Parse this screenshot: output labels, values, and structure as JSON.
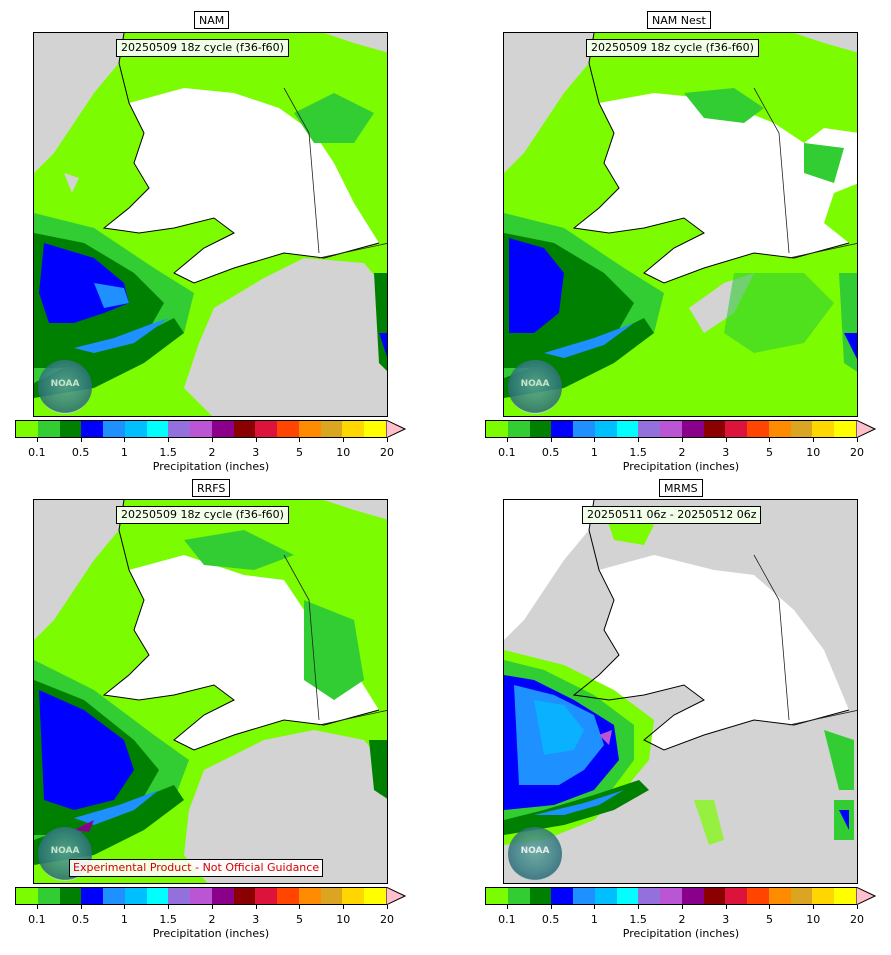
{
  "colors": {
    "land_no_precip": "#ffffff",
    "ocean": "#d3d3d3",
    "scale": [
      "#7cfc00",
      "#32cd32",
      "#008000",
      "#0000ff",
      "#1e90ff",
      "#00bfff",
      "#00ffff",
      "#9370db",
      "#ba55d3",
      "#8b008b",
      "#8b0000",
      "#dc143c",
      "#ff4500",
      "#ff8c00",
      "#daa520",
      "#ffd700",
      "#ffff00"
    ],
    "overflow": "#ffc0cb"
  },
  "colorbar": {
    "ticks": [
      "0.1",
      "0.5",
      "1",
      "1.5",
      "2",
      "3",
      "5",
      "10",
      "20"
    ],
    "label": "Precipitation (inches)"
  },
  "logo_text": "NOAA",
  "panels": [
    {
      "title": "NAM",
      "cycle": "20250509 18z cycle (f36-f60)",
      "disclaimer": ""
    },
    {
      "title": "NAM Nest",
      "cycle": "20250509 18z cycle (f36-f60)",
      "disclaimer": ""
    },
    {
      "title": "RRFS",
      "cycle": "20250509 18z cycle (f36-f60)",
      "disclaimer": "Experimental Product - Not Official Guidance"
    },
    {
      "title": "MRMS",
      "cycle": "20250511 06z - 20250512 06z",
      "disclaimer": ""
    }
  ]
}
